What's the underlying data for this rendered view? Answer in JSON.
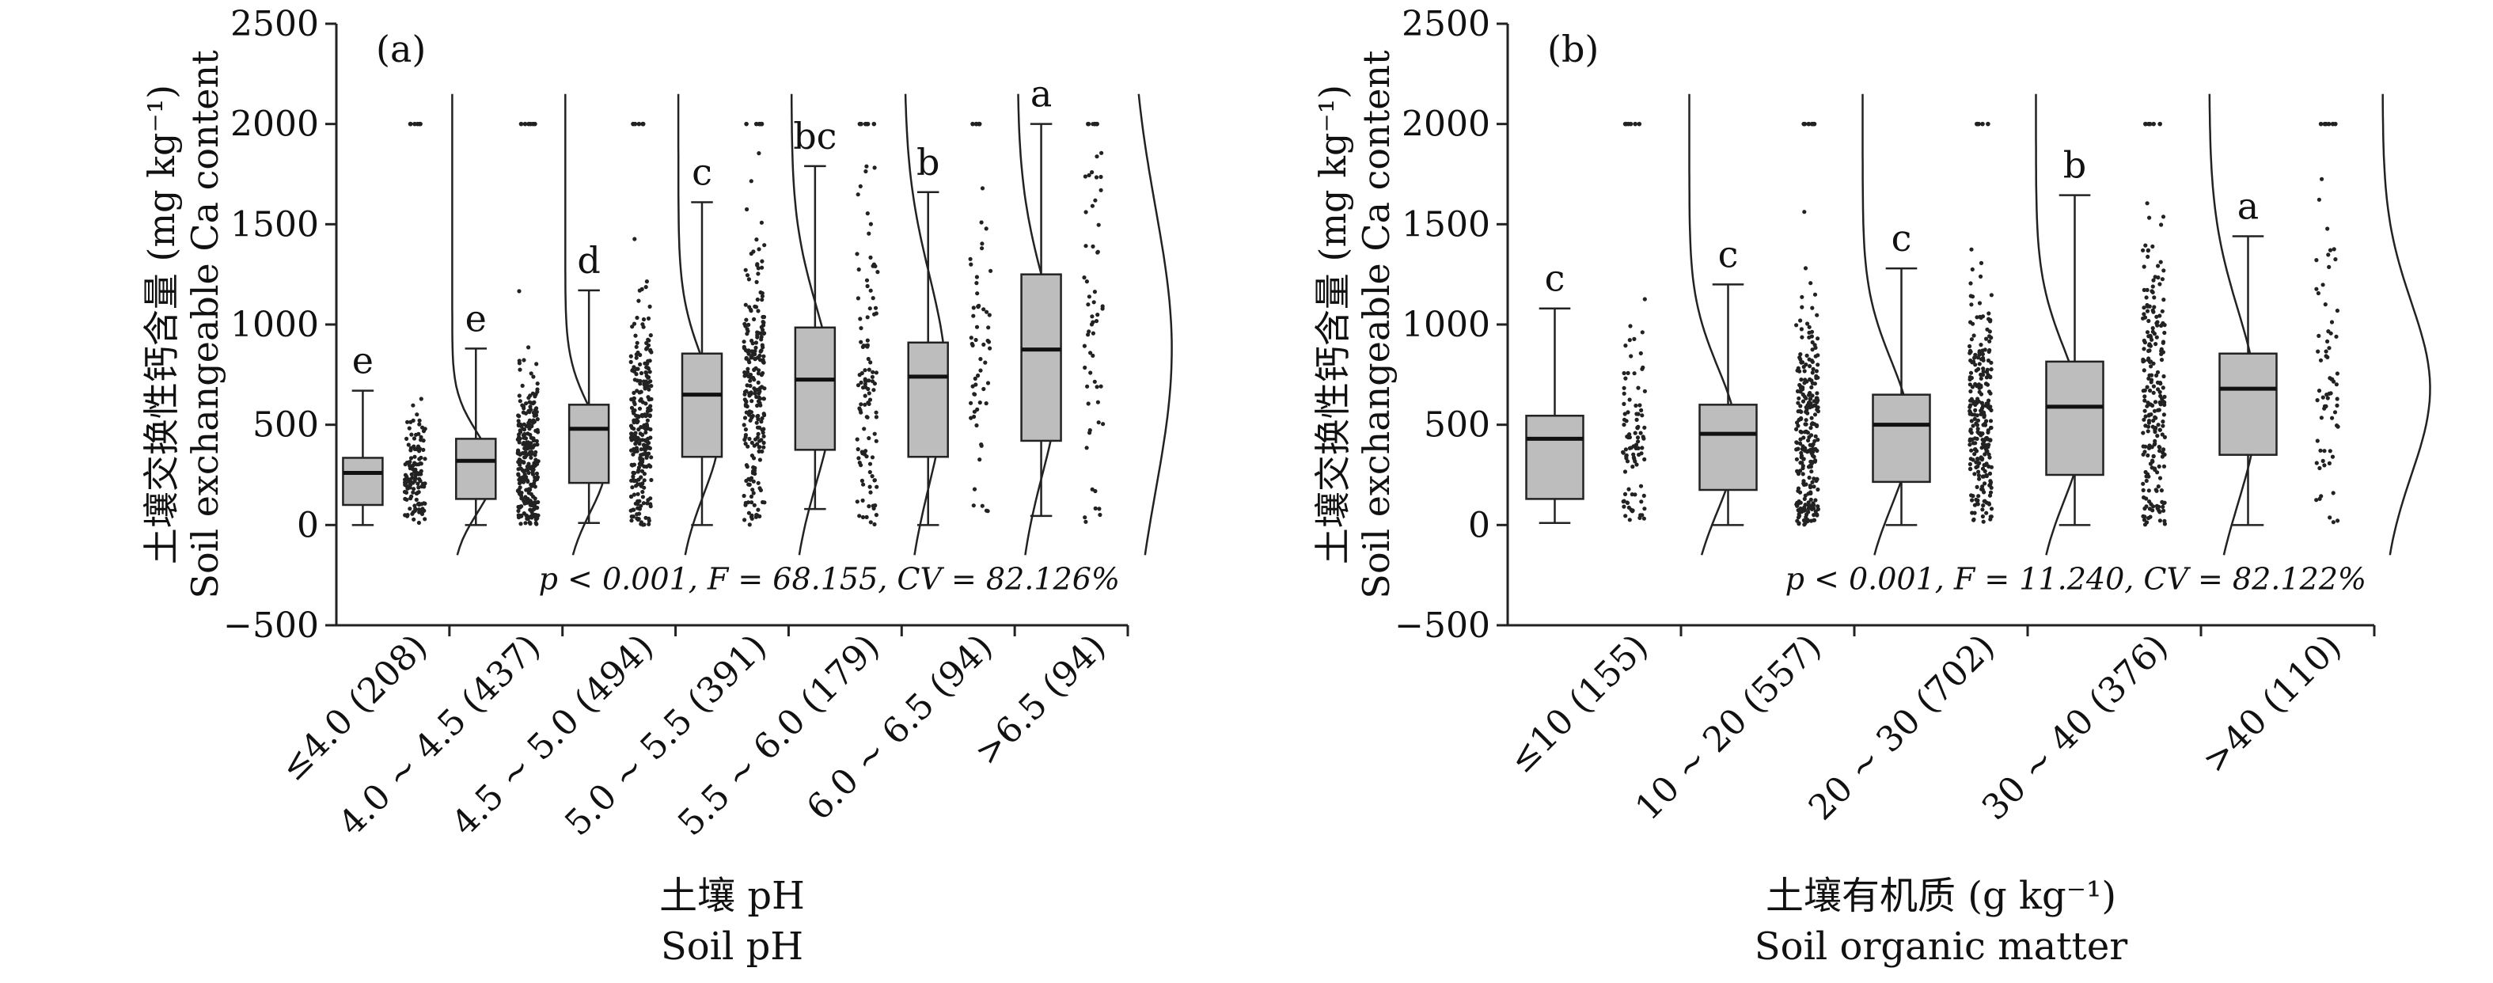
{
  "chart_data": [
    {
      "type": "box",
      "panel_label": "(a)",
      "ylabel_cn": "土壤交换性钙含量 (mg kg⁻¹)",
      "ylabel_en": "Soil exchangeable Ca content",
      "xlabel_cn": "土壤 pH",
      "xlabel_en": "Soil pH",
      "ylim": [
        -500,
        2500
      ],
      "yticks": [
        -500,
        0,
        500,
        1000,
        1500,
        2000,
        2500
      ],
      "stat_text": "p < 0.001, F = 68.155, CV = 82.126%",
      "categories": [
        "≤4.0 (208)",
        "4.0 ~ 4.5 (437)",
        "4.5 ~ 5.0 (494)",
        "5.0 ~ 5.5 (391)",
        "5.5 ~ 6.0 (179)",
        "6.0 ~ 6.5 (94)",
        ">6.5 (94)"
      ],
      "boxes": [
        {
          "min": 0,
          "q1": 100,
          "median": 260,
          "q3": 335,
          "max": 670,
          "letter": "e",
          "n": 208
        },
        {
          "min": 0,
          "q1": 130,
          "median": 320,
          "q3": 430,
          "max": 880,
          "letter": "e",
          "n": 437
        },
        {
          "min": 10,
          "q1": 210,
          "median": 480,
          "q3": 600,
          "max": 1170,
          "letter": "d",
          "n": 494
        },
        {
          "min": 0,
          "q1": 340,
          "median": 650,
          "q3": 855,
          "max": 1610,
          "letter": "c",
          "n": 391
        },
        {
          "min": 80,
          "q1": 375,
          "median": 725,
          "q3": 985,
          "max": 1790,
          "letter": "bc",
          "n": 179
        },
        {
          "min": 0,
          "q1": 340,
          "median": 740,
          "q3": 910,
          "max": 1660,
          "letter": "b",
          "n": 94
        },
        {
          "min": 45,
          "q1": 420,
          "median": 875,
          "q3": 1250,
          "max": 2000,
          "letter": "a",
          "n": 94
        }
      ]
    },
    {
      "type": "box",
      "panel_label": "(b)",
      "ylabel_cn": "土壤交换性钙含量 (mg kg⁻¹)",
      "ylabel_en": "Soil exchangeable Ca content",
      "xlabel_cn": "土壤有机质 (g kg⁻¹)",
      "xlabel_en": "Soil organic matter",
      "ylim": [
        -500,
        2500
      ],
      "yticks": [
        -500,
        0,
        500,
        1000,
        1500,
        2000,
        2500
      ],
      "stat_text": "p < 0.001, F = 11.240, CV = 82.122%",
      "categories": [
        "≤10 (155)",
        "10 ~ 20 (557)",
        "20 ~ 30 (702)",
        "30 ~ 40 (376)",
        ">40 (110)"
      ],
      "boxes": [
        {
          "min": 10,
          "q1": 130,
          "median": 430,
          "q3": 545,
          "max": 1080,
          "letter": "c",
          "n": 155
        },
        {
          "min": 0,
          "q1": 175,
          "median": 455,
          "q3": 600,
          "max": 1200,
          "letter": "c",
          "n": 557
        },
        {
          "min": 0,
          "q1": 215,
          "median": 500,
          "q3": 650,
          "max": 1280,
          "letter": "c",
          "n": 702
        },
        {
          "min": 0,
          "q1": 250,
          "median": 590,
          "q3": 815,
          "max": 1645,
          "letter": "b",
          "n": 376
        },
        {
          "min": 0,
          "q1": 350,
          "median": 680,
          "q3": 855,
          "max": 1440,
          "letter": "a",
          "n": 110
        }
      ]
    }
  ]
}
